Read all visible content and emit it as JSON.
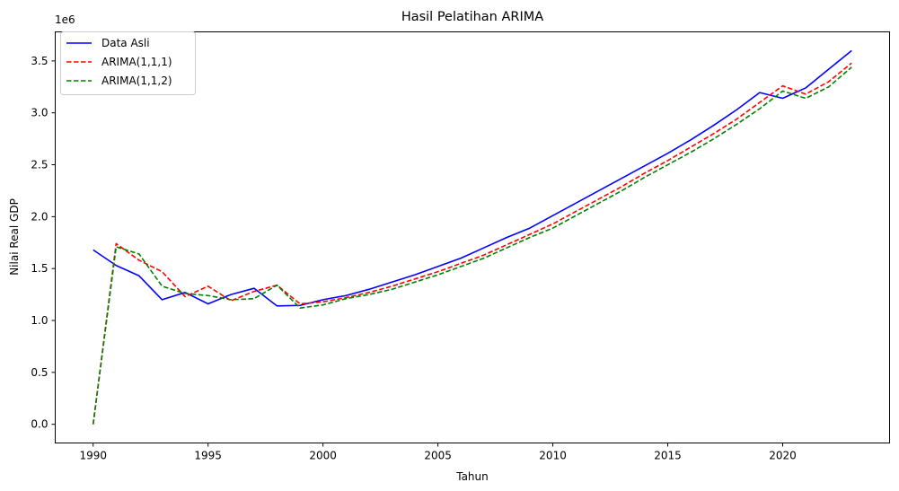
{
  "chart_data": {
    "type": "line",
    "title": "Hasil Pelatihan ARIMA",
    "xlabel": "Tahun",
    "ylabel": "Nilai Real GDP",
    "y_scale_label": "1e6",
    "xlim": [
      1988.35,
      2024.65
    ],
    "ylim": [
      -0.18,
      3.78
    ],
    "x_ticks": [
      1990,
      1995,
      2000,
      2005,
      2010,
      2015,
      2020
    ],
    "y_ticks": [
      "0.0",
      "0.5",
      "1.0",
      "1.5",
      "2.0",
      "2.5",
      "3.0",
      "3.5"
    ],
    "legend_position": "top-left",
    "grid": false,
    "x": [
      1990,
      1991,
      1992,
      1993,
      1994,
      1995,
      1996,
      1997,
      1998,
      1999,
      2000,
      2001,
      2002,
      2003,
      2004,
      2005,
      2006,
      2007,
      2008,
      2009,
      2010,
      2011,
      2012,
      2013,
      2014,
      2015,
      2016,
      2017,
      2018,
      2019,
      2020,
      2021,
      2022,
      2023
    ],
    "series": [
      {
        "name": "Data Asli",
        "color": "#0000ff",
        "dash": "solid",
        "values": [
          1.68,
          1.53,
          1.43,
          1.2,
          1.27,
          1.16,
          1.25,
          1.31,
          1.14,
          1.145,
          1.2,
          1.24,
          1.3,
          1.37,
          1.44,
          1.52,
          1.6,
          1.7,
          1.8,
          1.89,
          2.01,
          2.13,
          2.25,
          2.37,
          2.49,
          2.61,
          2.74,
          2.88,
          3.03,
          3.195,
          3.14,
          3.24,
          3.42,
          3.6
        ]
      },
      {
        "name": "ARIMA(1,1,1)",
        "color": "#ff0000",
        "dash": "dashed",
        "values": [
          0.0,
          1.74,
          1.58,
          1.47,
          1.23,
          1.33,
          1.19,
          1.28,
          1.34,
          1.16,
          1.18,
          1.22,
          1.27,
          1.33,
          1.4,
          1.47,
          1.55,
          1.63,
          1.73,
          1.83,
          1.93,
          2.05,
          2.17,
          2.29,
          2.42,
          2.54,
          2.67,
          2.8,
          2.94,
          3.1,
          3.26,
          3.18,
          3.3,
          3.48
        ]
      },
      {
        "name": "ARIMA(1,1,2)",
        "color": "#008000",
        "dash": "dashed",
        "values": [
          0.0,
          1.71,
          1.64,
          1.33,
          1.26,
          1.24,
          1.2,
          1.21,
          1.34,
          1.12,
          1.15,
          1.21,
          1.25,
          1.3,
          1.37,
          1.44,
          1.52,
          1.6,
          1.7,
          1.8,
          1.89,
          2.01,
          2.13,
          2.25,
          2.38,
          2.5,
          2.62,
          2.75,
          2.89,
          3.04,
          3.21,
          3.14,
          3.25,
          3.44
        ]
      }
    ]
  }
}
